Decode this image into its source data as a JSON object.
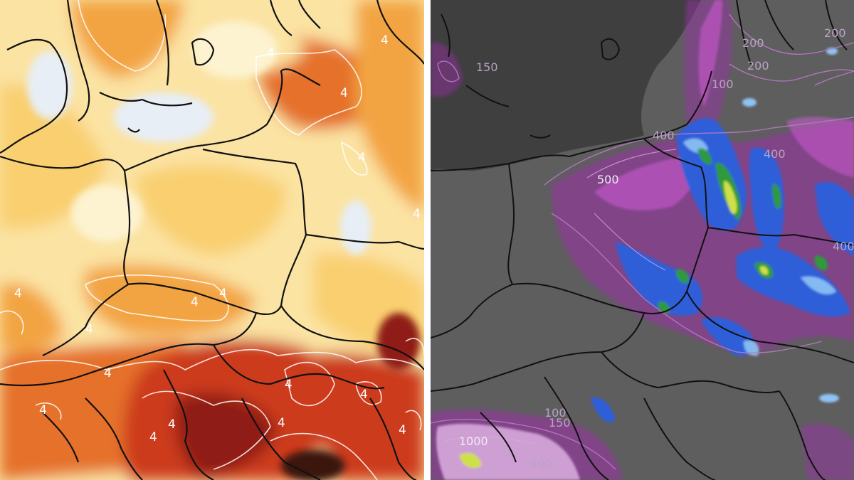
{
  "left_map": {
    "contour_labels": [
      "4",
      "4",
      "4",
      "4",
      "4",
      "4",
      "4",
      "4",
      "4",
      "4",
      "4",
      "4",
      "4",
      "4",
      "4",
      "4",
      "4"
    ],
    "colors": {
      "pale": "#fdf3d0",
      "light": "#fbe3a3",
      "yellow": "#f9cf6f",
      "orange": "#f3a442",
      "deep_orange": "#e5712a",
      "red": "#cc3a1c",
      "dark_red": "#8f1a12",
      "near_black": "#3a1410",
      "cold_white": "#e7eef5"
    }
  },
  "right_map": {
    "contour_labels": [
      "200",
      "200",
      "100",
      "400",
      "400",
      "400",
      "200",
      "500",
      "1000",
      "100",
      "150",
      "100",
      "150"
    ],
    "colors": {
      "land": "#5e5e5e",
      "sea": "#3f3f3f",
      "purple": "#9a2fa8",
      "magenta": "#d35ad9",
      "pink_white": "#f0c6f3",
      "blue": "#2f5fd9",
      "light_blue": "#8fc3f3",
      "green": "#2e9a3a",
      "yellow_green": "#cde04a"
    }
  }
}
